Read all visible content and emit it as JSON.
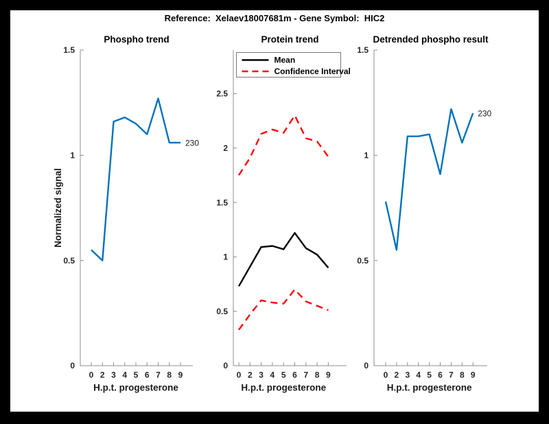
{
  "figure": {
    "title": "Reference:  Xelaev18007681m - Gene Symbol:  HIC2",
    "background_color": "#000000",
    "canvas_color": "#ffffff",
    "accent_blue": "#0072BD",
    "accent_red": "#FF0000",
    "accent_black": "#000000"
  },
  "chart_data": [
    {
      "type": "line",
      "title": "Phospho trend",
      "xlabel": "H.p.t. progesterone",
      "ylabel": "Normalized signal",
      "x_ticklabels": [
        "0",
        "2",
        "3",
        "4",
        "5",
        "6",
        "7",
        "8",
        "9"
      ],
      "yticks": [
        0,
        0.5,
        1,
        1.5
      ],
      "yticklabels": [
        "0",
        "0.5",
        "1",
        "1.5"
      ],
      "ylim": [
        0,
        1.5
      ],
      "grid": false,
      "series": [
        {
          "name": "phospho-signal",
          "color": "#0072BD",
          "line_style": "solid",
          "values": [
            0.55,
            0.5,
            1.16,
            1.18,
            1.15,
            1.1,
            1.27,
            1.06,
            1.06
          ],
          "end_label": "230"
        }
      ]
    },
    {
      "type": "line",
      "title": "Protein trend",
      "xlabel": "H.p.t. progesterone",
      "ylabel": "",
      "x_ticklabels": [
        "0",
        "2",
        "3",
        "4",
        "5",
        "6",
        "7",
        "8",
        "9"
      ],
      "yticks": [
        0,
        0.5,
        1,
        1.5,
        2,
        2.5
      ],
      "yticklabels": [
        "0",
        "0.5",
        "1",
        "1.5",
        "2",
        "2.5"
      ],
      "ylim": [
        0,
        2.9
      ],
      "grid": false,
      "legend": {
        "position": "top-left",
        "entries": [
          {
            "label": "Mean",
            "color": "#000000",
            "line_style": "solid"
          },
          {
            "label": "Confidence Interval",
            "color": "#FF0000",
            "line_style": "dashed"
          }
        ]
      },
      "series": [
        {
          "name": "mean",
          "color": "#000000",
          "line_style": "solid",
          "values": [
            0.73,
            0.91,
            1.09,
            1.1,
            1.07,
            1.22,
            1.08,
            1.02,
            0.9
          ]
        },
        {
          "name": "confidence-interval-upper",
          "color": "#FF0000",
          "line_style": "dashed",
          "values": [
            1.75,
            1.91,
            2.13,
            2.17,
            2.14,
            2.3,
            2.09,
            2.06,
            1.92
          ]
        },
        {
          "name": "confidence-interval-lower",
          "color": "#FF0000",
          "line_style": "dashed",
          "values": [
            0.33,
            0.47,
            0.6,
            0.58,
            0.57,
            0.7,
            0.59,
            0.55,
            0.51
          ]
        }
      ]
    },
    {
      "type": "line",
      "title": "Detrended phospho result",
      "xlabel": "H.p.t. progesterone",
      "ylabel": "",
      "x_ticklabels": [
        "0",
        "2",
        "3",
        "4",
        "5",
        "6",
        "7",
        "8",
        "9"
      ],
      "yticks": [
        0,
        0.5,
        1,
        1.5
      ],
      "yticklabels": [
        "0",
        "0.5",
        "1",
        "1.5"
      ],
      "ylim": [
        0,
        1.5
      ],
      "grid": false,
      "series": [
        {
          "name": "detrended-phospho",
          "color": "#0072BD",
          "line_style": "solid",
          "values": [
            0.78,
            0.55,
            1.09,
            1.09,
            1.1,
            0.91,
            1.22,
            1.06,
            1.2
          ],
          "end_label": "230"
        }
      ]
    }
  ]
}
